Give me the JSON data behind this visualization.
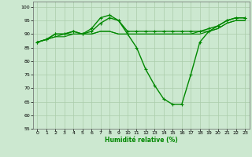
{
  "title": "",
  "xlabel": "Humidité relative (%)",
  "ylabel": "",
  "background_color": "#cce8d0",
  "grid_color": "#aaccaa",
  "line_color": "#008800",
  "xlim": [
    -0.5,
    23.5
  ],
  "ylim": [
    55,
    102
  ],
  "yticks": [
    55,
    60,
    65,
    70,
    75,
    80,
    85,
    90,
    95,
    100
  ],
  "xticks": [
    0,
    1,
    2,
    3,
    4,
    5,
    6,
    7,
    8,
    9,
    10,
    11,
    12,
    13,
    14,
    15,
    16,
    17,
    18,
    19,
    20,
    21,
    22,
    23
  ],
  "series": [
    [
      87,
      88,
      90,
      90,
      91,
      90,
      92,
      96,
      97,
      95,
      90,
      85,
      77,
      71,
      66,
      64,
      64,
      75,
      87,
      91,
      93,
      95,
      96,
      96
    ],
    [
      87,
      88,
      90,
      90,
      91,
      90,
      91,
      94,
      96,
      95,
      91,
      91,
      91,
      91,
      91,
      91,
      91,
      91,
      91,
      92,
      93,
      95,
      96,
      96
    ],
    [
      87,
      88,
      89,
      90,
      90,
      90,
      90,
      91,
      91,
      90,
      90,
      90,
      90,
      90,
      90,
      90,
      90,
      90,
      91,
      91,
      92,
      94,
      95,
      95
    ],
    [
      87,
      88,
      89,
      89,
      90,
      90,
      90,
      91,
      91,
      90,
      90,
      90,
      90,
      90,
      90,
      90,
      90,
      90,
      90,
      91,
      92,
      94,
      95,
      95
    ]
  ],
  "markers": [
    true,
    true,
    false,
    false
  ],
  "linewidths": [
    1.0,
    1.0,
    0.8,
    0.8
  ]
}
